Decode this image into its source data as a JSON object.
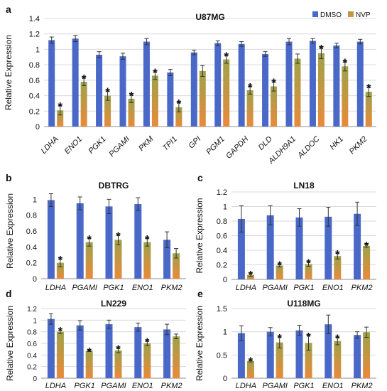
{
  "colors": {
    "dmso": "#4a68c8",
    "nvp_top": "#9ea24a",
    "nvp_bottom": "#ea8a3a",
    "grid": "#d9d9d9",
    "axis": "#8c8c8c",
    "error": "#333333",
    "text": "#111111"
  },
  "chart_data": [
    {
      "panel": "a",
      "type": "bar",
      "title": "U87MG",
      "ylabel": "Relative Expression",
      "xlabel": "",
      "ylim": [
        0,
        1.4
      ],
      "yticks": [
        0,
        0.2,
        0.4,
        0.6,
        0.8,
        1,
        1.2,
        1.4
      ],
      "ytick_labels": [
        "0",
        "0.2",
        "0.4",
        "0.6",
        "0.8",
        "1",
        "1.2",
        "1.4"
      ],
      "grid": true,
      "legend": {
        "placement": "top-right",
        "entries": [
          "DMSO",
          "NVP"
        ]
      },
      "categories": [
        "LDHA",
        "ENO1",
        "PGK1",
        "PGAMI",
        "PKM",
        "TPI1",
        "GPI",
        "PGM1",
        "GAPDH",
        "DLD",
        "ALDH9A1",
        "ALDOC",
        "HK1",
        "PKM2"
      ],
      "series": [
        {
          "name": "DMSO",
          "values": [
            1.12,
            1.14,
            0.93,
            0.91,
            1.1,
            0.7,
            0.96,
            1.08,
            1.07,
            0.94,
            1.1,
            1.11,
            1.05,
            1.1
          ],
          "errors": [
            0.04,
            0.04,
            0.04,
            0.04,
            0.04,
            0.04,
            0.03,
            0.03,
            0.03,
            0.03,
            0.04,
            0.03,
            0.03,
            0.03
          ]
        },
        {
          "name": "NVP",
          "values": [
            0.21,
            0.58,
            0.4,
            0.36,
            0.66,
            0.25,
            0.72,
            0.87,
            0.47,
            0.52,
            0.88,
            0.95,
            0.78,
            0.45
          ],
          "errors": [
            0.06,
            0.05,
            0.06,
            0.05,
            0.05,
            0.06,
            0.07,
            0.05,
            0.05,
            0.06,
            0.06,
            0.07,
            0.06,
            0.06
          ],
          "significant": [
            true,
            true,
            true,
            true,
            true,
            true,
            false,
            true,
            true,
            true,
            false,
            true,
            true,
            true
          ]
        }
      ]
    },
    {
      "panel": "b",
      "type": "bar",
      "title": "DBTRG",
      "ylabel": "Relative Expression",
      "xlabel": "",
      "ylim": [
        0,
        1.2
      ],
      "yticks": [
        0,
        0.2,
        0.4,
        0.6,
        0.8,
        1
      ],
      "ytick_labels": [
        "0",
        "0.2",
        "0.4",
        "0.6",
        "0.8",
        "1"
      ],
      "grid": false,
      "categories": [
        "LDHA",
        "PGAMI",
        "PGK1",
        "ENO1",
        "PKM2"
      ],
      "series": [
        {
          "name": "DMSO",
          "values": [
            0.99,
            0.95,
            0.91,
            0.94,
            0.49
          ],
          "errors": [
            0.08,
            0.08,
            0.09,
            0.08,
            0.1
          ]
        },
        {
          "name": "NVP",
          "values": [
            0.2,
            0.46,
            0.49,
            0.46,
            0.32
          ],
          "errors": [
            0.05,
            0.05,
            0.06,
            0.05,
            0.06
          ],
          "significant": [
            true,
            true,
            true,
            true,
            false
          ]
        }
      ]
    },
    {
      "panel": "c",
      "type": "bar",
      "title": "LN18",
      "ylabel": "Relative Expression",
      "xlabel": "",
      "ylim": [
        0,
        1.2
      ],
      "yticks": [
        0,
        0.2,
        0.4,
        0.6,
        0.8,
        1,
        1.2
      ],
      "ytick_labels": [
        "0",
        "0.2",
        "0.4",
        "0.6",
        "0.8",
        "1",
        "1.2"
      ],
      "grid": true,
      "categories": [
        "LDHA",
        "PGAMI",
        "PGK1",
        "ENO1",
        "PKM2"
      ],
      "series": [
        {
          "name": "DMSO",
          "values": [
            0.83,
            0.88,
            0.85,
            0.86,
            0.9
          ],
          "errors": [
            0.18,
            0.13,
            0.12,
            0.13,
            0.16
          ]
        },
        {
          "name": "NVP",
          "values": [
            0.06,
            0.19,
            0.21,
            0.32,
            0.46
          ],
          "errors": [
            0.02,
            0.02,
            0.03,
            0.04,
            0.02
          ],
          "significant": [
            true,
            true,
            true,
            true,
            true
          ]
        }
      ]
    },
    {
      "panel": "d",
      "type": "bar",
      "title": "LN229",
      "ylabel": "Relative Expression",
      "xlabel": "",
      "ylim": [
        0,
        1.2
      ],
      "yticks": [
        0,
        0.2,
        0.4,
        0.6,
        0.8,
        1,
        1.2
      ],
      "ytick_labels": [
        "0",
        "0.2",
        "0.4",
        "0.6",
        "0.8",
        "1",
        "1.2"
      ],
      "grid": true,
      "categories": [
        "LDHA",
        "PGK1",
        "PGAMI",
        "ENO1",
        "PKM2"
      ],
      "series": [
        {
          "name": "DMSO",
          "values": [
            1.02,
            0.91,
            0.93,
            0.88,
            0.84
          ],
          "errors": [
            0.09,
            0.08,
            0.07,
            0.07,
            0.09
          ]
        },
        {
          "name": "NVP",
          "values": [
            0.8,
            0.47,
            0.48,
            0.6,
            0.72
          ],
          "errors": [
            0.03,
            0.01,
            0.04,
            0.04,
            0.04
          ],
          "significant": [
            true,
            true,
            true,
            true,
            false
          ]
        }
      ]
    },
    {
      "panel": "e",
      "type": "bar",
      "title": "U118MG",
      "ylabel": "Relative Expression",
      "xlabel": "",
      "ylim": [
        0,
        1.5
      ],
      "yticks": [
        0,
        0.5,
        1,
        1.5
      ],
      "ytick_labels": [
        "0",
        "0.5",
        "1",
        "1.5"
      ],
      "grid": true,
      "categories": [
        "LDHA",
        "PGAMI",
        "PGK1",
        "ENO1",
        "PKM2"
      ],
      "series": [
        {
          "name": "DMSO",
          "values": [
            0.97,
            1.0,
            1.03,
            1.16,
            0.93
          ],
          "errors": [
            0.16,
            0.09,
            0.11,
            0.2,
            0.07
          ]
        },
        {
          "name": "NVP",
          "values": [
            0.37,
            0.77,
            0.76,
            0.8,
            0.99
          ],
          "errors": [
            0.02,
            0.12,
            0.16,
            0.08,
            0.11
          ],
          "significant": [
            true,
            true,
            true,
            true,
            false
          ]
        }
      ]
    }
  ]
}
